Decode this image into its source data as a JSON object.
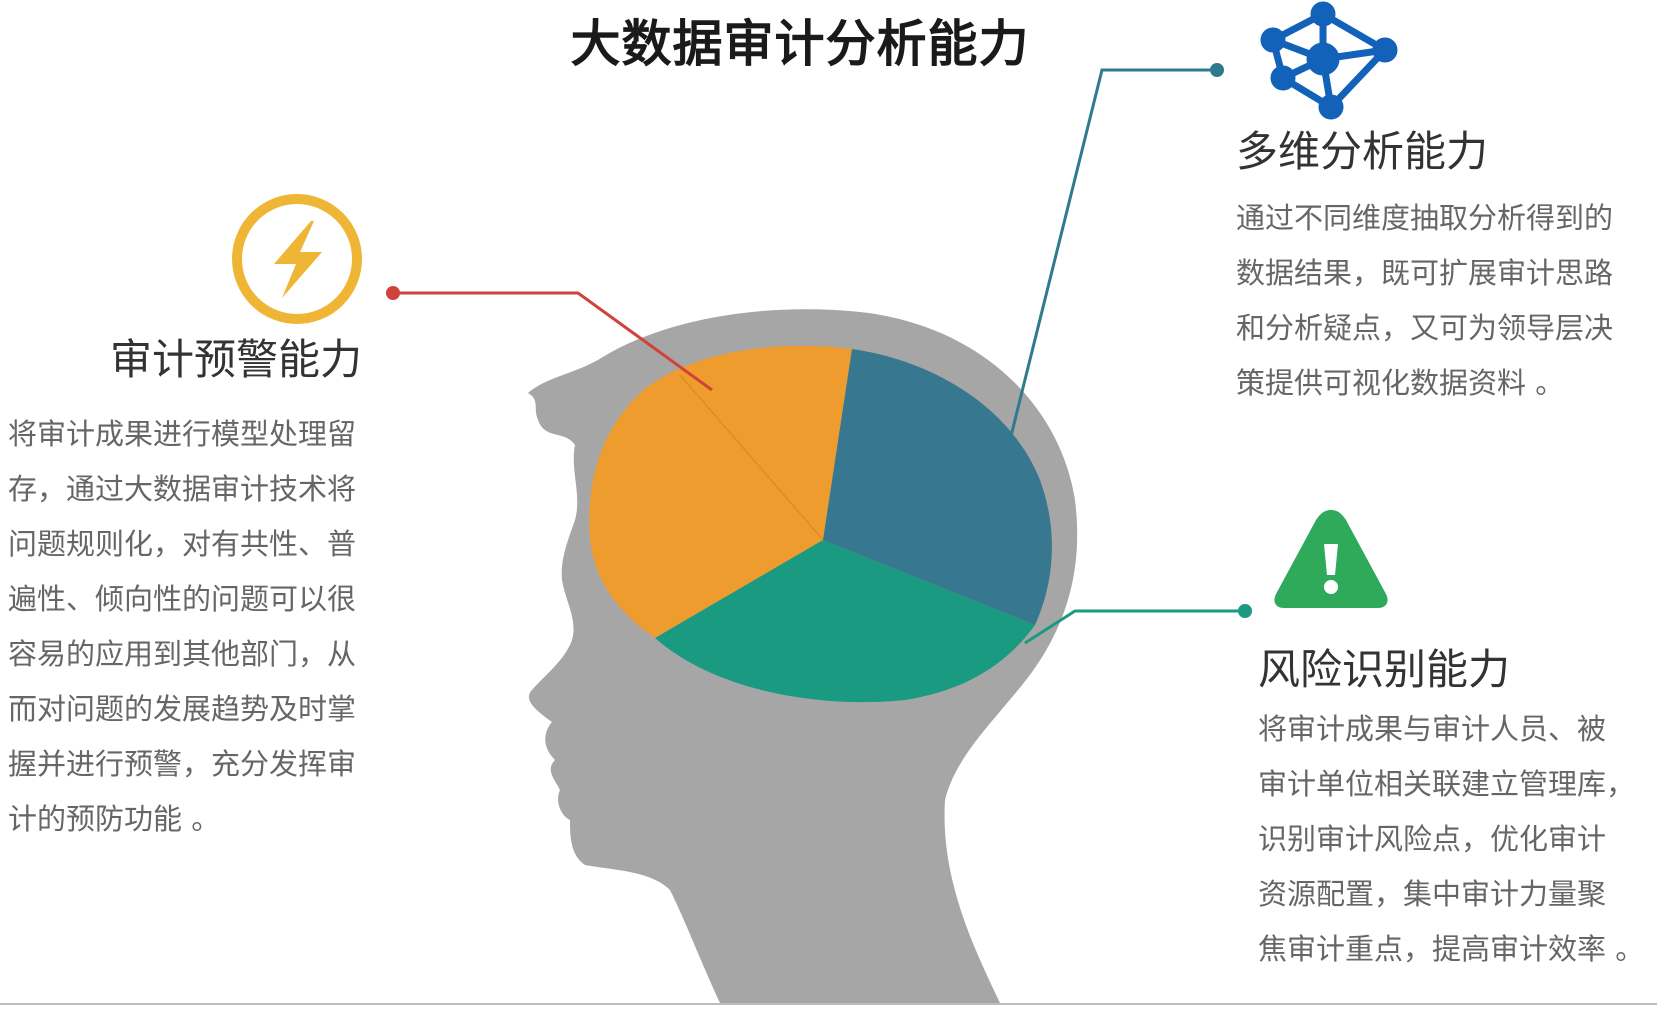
{
  "title": "大数据审计分析能力",
  "colors": {
    "head": "#a6a6a6",
    "orange": "#ef9c2e",
    "blue": "#37778f",
    "green": "#1a9a80",
    "warning_line": "#d0423a",
    "multi_line": "#2f7a8e",
    "risk_line": "#1a9a80",
    "lightning_icon": "#efb535",
    "network_icon": "#1162b8",
    "alert_icon": "#2eaa5a"
  },
  "sections": {
    "warning": {
      "icon": "lightning-icon",
      "heading": "审计预警能力",
      "lines": [
        "将审计成果进行模型处理留",
        "存，通过大数据审计技术将",
        "问题规则化，对有共性、普",
        "遍性、倾向性的问题可以很",
        "容易的应用到其他部门，从",
        "而对问题的发展趋势及时掌",
        "握并进行预警，充分发挥审",
        "计的预防功能 。"
      ]
    },
    "multi": {
      "icon": "network-icon",
      "heading": "多维分析能力",
      "lines": [
        "通过不同维度抽取分析得到的",
        "数据结果，既可扩展审计思路",
        "和分析疑点，又可为领导层决",
        "策提供可视化数据资料 。"
      ]
    },
    "risk": {
      "icon": "alert-triangle-icon",
      "heading": "风险识别能力",
      "lines": [
        "将审计成果与审计人员、被",
        "审计单位相关联建立管理库，",
        "识别审计风险点，优化审计",
        "资源配置，集中审计力量聚",
        "焦审计重点，提高审计效率 。"
      ]
    }
  }
}
